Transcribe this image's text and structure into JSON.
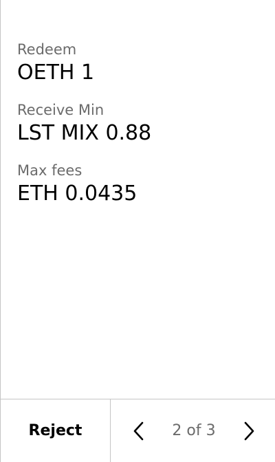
{
  "fields": [
    {
      "label": "Redeem",
      "value": "OETH 1"
    },
    {
      "label": "Receive Min",
      "value": "LST MIX 0.88"
    },
    {
      "label": "Max fees",
      "value": "ETH 0.0435"
    }
  ],
  "footer": {
    "reject_label": "Reject",
    "page_indicator": "2 of 3",
    "prev_icon": "chevron-left-icon",
    "next_icon": "chevron-right-icon"
  },
  "colors": {
    "label": "#6b6b6b",
    "value": "#000000",
    "divider": "#c4c4c4"
  }
}
